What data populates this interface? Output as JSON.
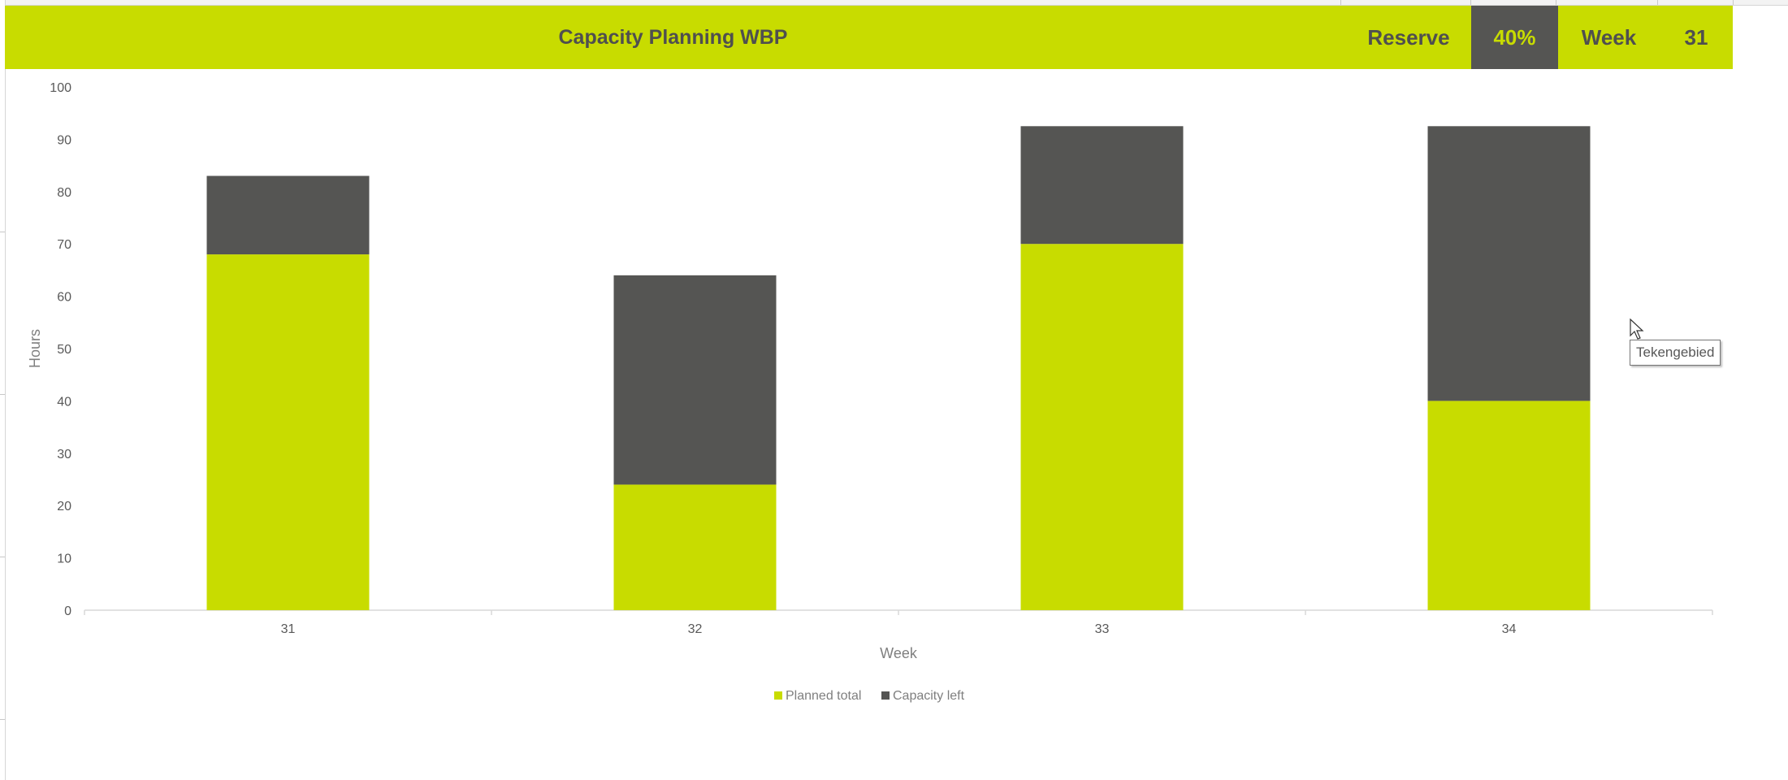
{
  "header": {
    "title": "Capacity Planning WBP",
    "reserve_label": "Reserve",
    "reserve_value": "40%",
    "week_label": "Week",
    "week_value": "31"
  },
  "colors": {
    "accent": "#c8dc00",
    "dark": "#555553",
    "header_text": "#4f4f4f"
  },
  "chart_data": {
    "type": "bar",
    "stacked": true,
    "title": "",
    "xlabel": "Week",
    "ylabel": "Hours",
    "categories": [
      "31",
      "32",
      "33",
      "34"
    ],
    "series": [
      {
        "name": "Planned total",
        "values": [
          68,
          24,
          70,
          40
        ],
        "color": "#c8dc00"
      },
      {
        "name": "Capacity left",
        "values": [
          15,
          40,
          22.5,
          52.5
        ],
        "color": "#555553"
      }
    ],
    "ylim": [
      0,
      100
    ],
    "yticks": [
      0,
      10,
      20,
      30,
      40,
      50,
      60,
      70,
      80,
      90,
      100
    ],
    "grid": false,
    "legend": "bottom"
  },
  "tooltip": {
    "text": "Tekengebied"
  },
  "cursor": {
    "icon": "mouse-pointer-icon"
  }
}
